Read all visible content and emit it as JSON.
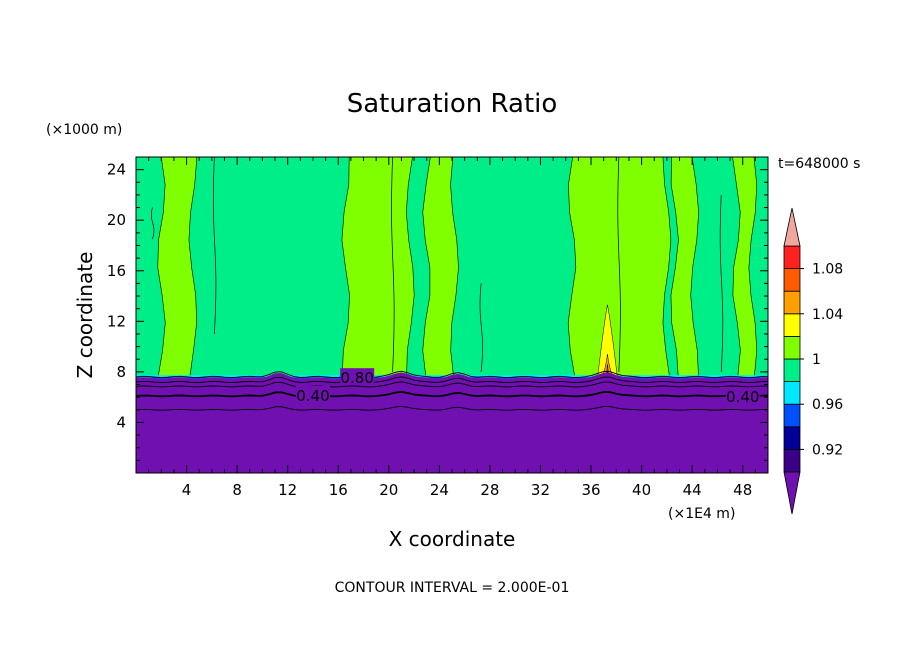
{
  "chart_data": {
    "type": "heatmap",
    "title": "Saturation Ratio",
    "xlabel": "X coordinate",
    "ylabel": "Z coordinate",
    "x_unit_label": "(×1E4 m)",
    "y_unit_label": "(×1000 m)",
    "time_label": "t=648000 s",
    "footer": "CONTOUR INTERVAL = 2.000E-01",
    "xlim": [
      0,
      50
    ],
    "ylim": [
      0,
      25
    ],
    "x_ticks": [
      4,
      8,
      12,
      16,
      20,
      24,
      28,
      32,
      36,
      40,
      44,
      48
    ],
    "y_ticks": [
      4,
      8,
      12,
      16,
      20,
      24
    ],
    "contour_labels": [
      {
        "text": "0.80",
        "x": 17.5,
        "z": 7.5
      },
      {
        "text": "0.40",
        "x": 14,
        "z": 6.1
      },
      {
        "text": "0.40",
        "x": 48,
        "z": 6.0
      }
    ],
    "colorbar": {
      "levels": [
        0.9,
        0.92,
        0.94,
        0.96,
        0.98,
        1.0,
        1.02,
        1.04,
        1.06,
        1.08,
        1.1
      ],
      "tick_labels": [
        "0.92",
        "0.96",
        "1",
        "1.04",
        "1.08"
      ],
      "tick_values": [
        0.92,
        0.96,
        1.0,
        1.04,
        1.08
      ],
      "colors": [
        "#3a0088",
        "#000099",
        "#0050ff",
        "#00e8ff",
        "#00ee88",
        "#80ff00",
        "#ffff00",
        "#ffa000",
        "#ff5a00",
        "#ff2020"
      ],
      "under_color": "#7010b0",
      "over_color": "#f2a6a0"
    },
    "regions": {
      "dry_layer_color": "#7010b0",
      "dry_layer_top_z": 7.5,
      "background_color": "#00ee88",
      "moist_streak_color": "#80ff00",
      "moist_streaks_x": [
        [
          2,
          4.5
        ],
        [
          16.6,
          21.7
        ],
        [
          23,
          25.2
        ],
        [
          34.5,
          42
        ],
        [
          42.6,
          44.2
        ],
        [
          47.5,
          48.8
        ]
      ],
      "peak": {
        "x": 37.3,
        "z_top": 13.3
      }
    }
  }
}
